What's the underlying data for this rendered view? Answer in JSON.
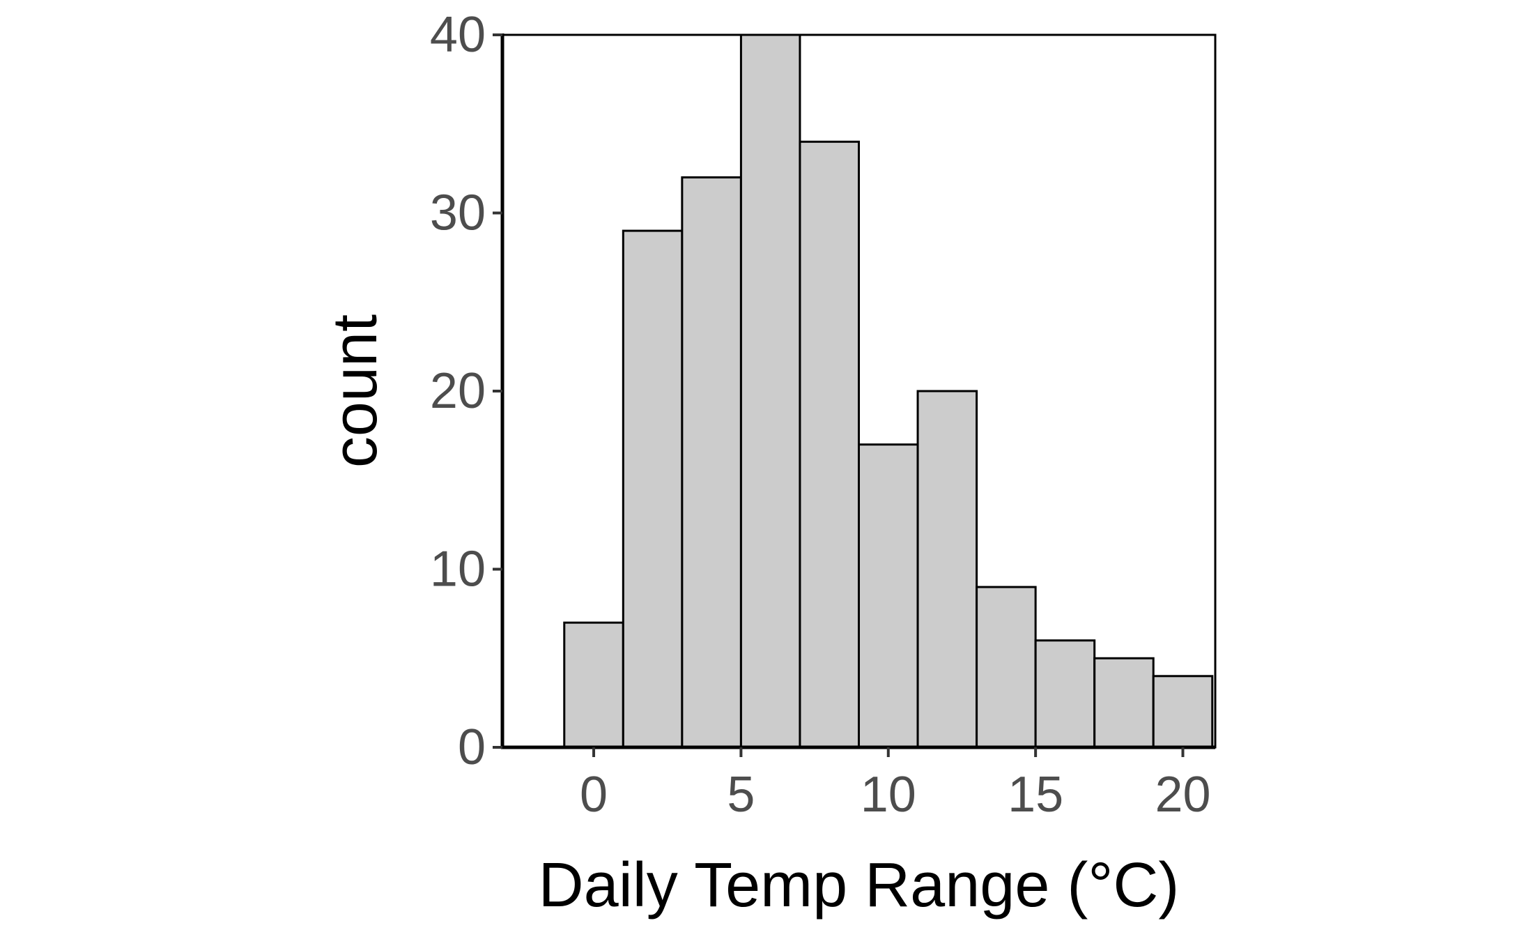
{
  "chart_data": {
    "type": "bar",
    "subtype": "histogram",
    "title": "",
    "xlabel": "Daily Temp Range (°C)",
    "ylabel": "count",
    "bin_width": 2,
    "bins": [
      {
        "x0": -1,
        "x1": 1,
        "count": 7
      },
      {
        "x0": 1,
        "x1": 3,
        "count": 29
      },
      {
        "x0": 3,
        "x1": 5,
        "count": 32
      },
      {
        "x0": 5,
        "x1": 7,
        "count": 40
      },
      {
        "x0": 7,
        "x1": 9,
        "count": 34
      },
      {
        "x0": 9,
        "x1": 11,
        "count": 17
      },
      {
        "x0": 11,
        "x1": 13,
        "count": 20
      },
      {
        "x0": 13,
        "x1": 15,
        "count": 9
      },
      {
        "x0": 15,
        "x1": 17,
        "count": 6
      },
      {
        "x0": 17,
        "x1": 19,
        "count": 5
      },
      {
        "x0": 19,
        "x1": 21,
        "count": 4
      }
    ],
    "xlim": [
      -3.1,
      21.1
    ],
    "ylim": [
      0,
      40
    ],
    "x_ticks": [
      0,
      5,
      10,
      15,
      20
    ],
    "y_ticks": [
      0,
      10,
      20,
      30,
      40
    ],
    "bar_fill": "#cccccc",
    "bar_stroke": "#000000",
    "grid": false,
    "legend": "none"
  }
}
